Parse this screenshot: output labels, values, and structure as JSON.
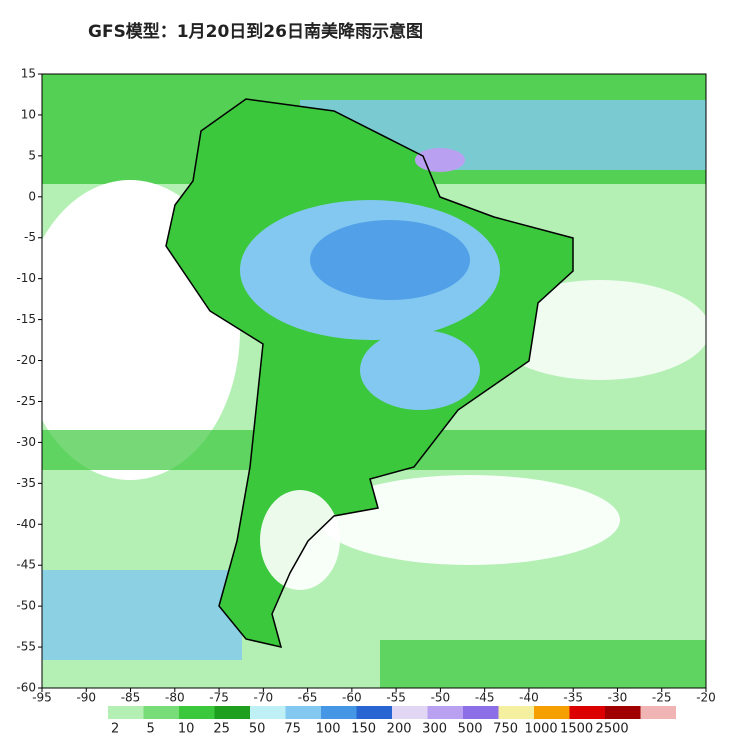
{
  "title": "GFS模型：1月20日到26日南美降雨示意图",
  "map": {
    "xlim": [
      -95,
      -20
    ],
    "ylim": [
      -60,
      15
    ],
    "xticks": [
      -95,
      -90,
      -85,
      -80,
      -75,
      -70,
      -65,
      -60,
      -55,
      -50,
      -45,
      -40,
      -35,
      -30,
      -25,
      -20
    ],
    "yticks": [
      15,
      10,
      5,
      0,
      -5,
      -10,
      -15,
      -20,
      -25,
      -30,
      -35,
      -40,
      -45,
      -50,
      -55,
      -60
    ]
  },
  "colorbar": {
    "levels": [
      2,
      5,
      10,
      25,
      50,
      75,
      100,
      150,
      200,
      300,
      500,
      750,
      1000,
      1500,
      2500
    ],
    "colors": [
      "#b4f0b4",
      "#78dc78",
      "#3cc83c",
      "#1ea01e",
      "#bef0f5",
      "#82c8f0",
      "#4696e6",
      "#2864d2",
      "#e1d7f5",
      "#b9a0f0",
      "#8c6ee6",
      "#f5f0a0",
      "#f5a000",
      "#dc0000",
      "#a00000",
      "#f0b4b4"
    ]
  }
}
